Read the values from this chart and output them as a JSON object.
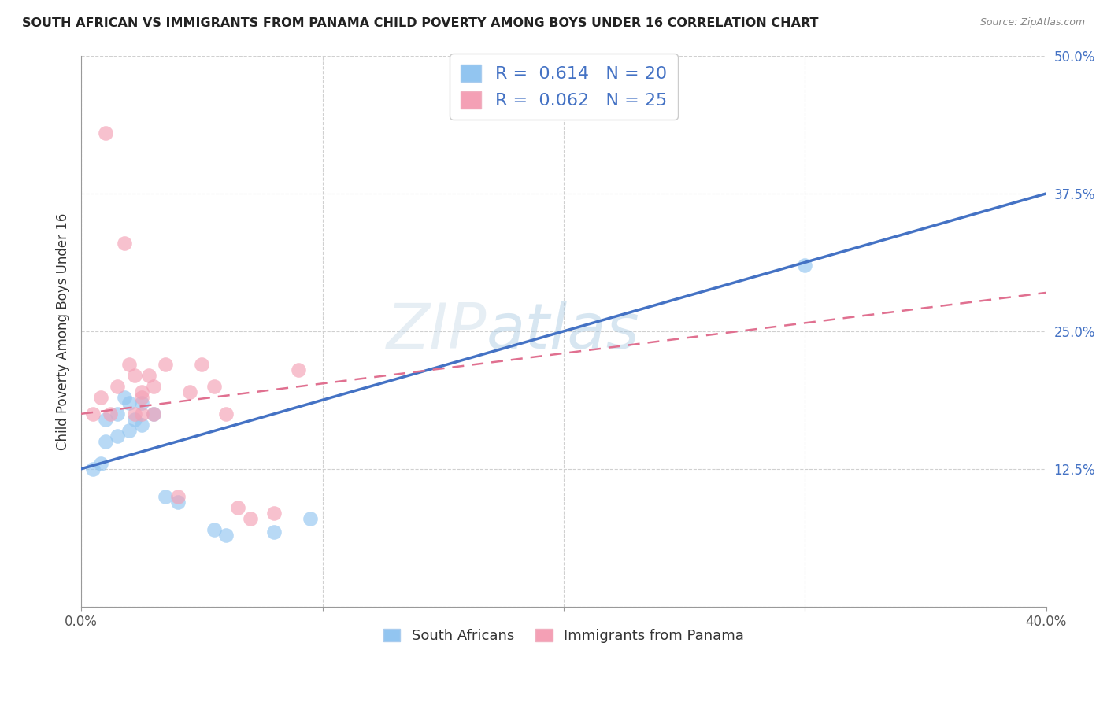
{
  "title": "SOUTH AFRICAN VS IMMIGRANTS FROM PANAMA CHILD POVERTY AMONG BOYS UNDER 16 CORRELATION CHART",
  "source": "Source: ZipAtlas.com",
  "ylabel": "Child Poverty Among Boys Under 16",
  "xlabel_south_african": "South Africans",
  "xlabel_panama": "Immigrants from Panama",
  "xmin": 0.0,
  "xmax": 0.4,
  "ymin": 0.0,
  "ymax": 0.5,
  "yticks": [
    0.0,
    0.125,
    0.25,
    0.375,
    0.5
  ],
  "xticks": [
    0.0,
    0.1,
    0.2,
    0.3,
    0.4
  ],
  "R_south_african": 0.614,
  "N_south_african": 20,
  "R_panama": 0.062,
  "N_panama": 25,
  "color_south_african": "#92C5F0",
  "color_panama": "#F4A0B5",
  "line_color_south_african": "#4472C4",
  "line_color_panama": "#E07090",
  "watermark": "ZIPAtlas",
  "sa_line_x0": 0.0,
  "sa_line_y0": 0.125,
  "sa_line_x1": 0.4,
  "sa_line_y1": 0.375,
  "pa_line_x0": 0.0,
  "pa_line_y0": 0.175,
  "pa_line_x1": 0.4,
  "pa_line_y1": 0.285,
  "south_african_x": [
    0.005,
    0.008,
    0.01,
    0.01,
    0.015,
    0.015,
    0.018,
    0.02,
    0.02,
    0.022,
    0.025,
    0.025,
    0.03,
    0.035,
    0.04,
    0.055,
    0.06,
    0.08,
    0.095,
    0.3
  ],
  "south_african_y": [
    0.125,
    0.13,
    0.15,
    0.17,
    0.155,
    0.175,
    0.19,
    0.16,
    0.185,
    0.17,
    0.165,
    0.185,
    0.175,
    0.1,
    0.095,
    0.07,
    0.065,
    0.068,
    0.08,
    0.31
  ],
  "panama_x": [
    0.005,
    0.008,
    0.01,
    0.012,
    0.015,
    0.018,
    0.02,
    0.022,
    0.022,
    0.025,
    0.025,
    0.025,
    0.028,
    0.03,
    0.03,
    0.035,
    0.04,
    0.045,
    0.05,
    0.055,
    0.06,
    0.065,
    0.07,
    0.08,
    0.09
  ],
  "panama_y": [
    0.175,
    0.19,
    0.43,
    0.175,
    0.2,
    0.33,
    0.22,
    0.21,
    0.175,
    0.195,
    0.175,
    0.19,
    0.21,
    0.2,
    0.175,
    0.22,
    0.1,
    0.195,
    0.22,
    0.2,
    0.175,
    0.09,
    0.08,
    0.085,
    0.215
  ]
}
